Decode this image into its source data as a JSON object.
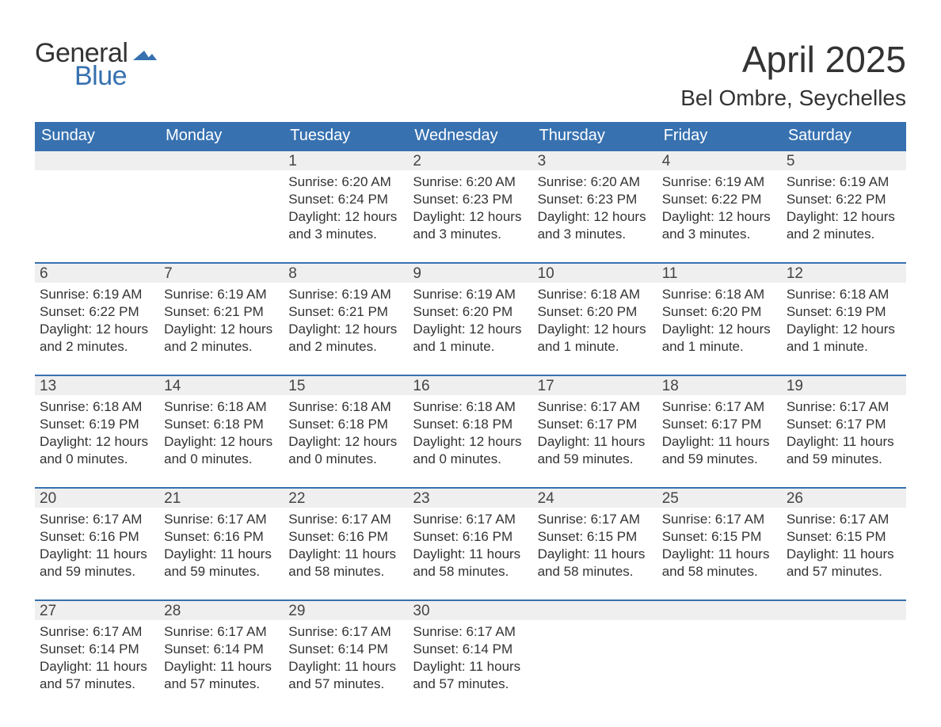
{
  "logo": {
    "text1": "General",
    "text2": "Blue",
    "accent_color": "#3771b0"
  },
  "title": "April 2025",
  "location": "Bel Ombre, Seychelles",
  "colors": {
    "header_bg": "#3771b0",
    "header_text": "#ffffff",
    "daynum_bg": "#efefef",
    "daynum_border": "#3771b0",
    "body_text": "#333333",
    "background": "#ffffff"
  },
  "typography": {
    "title_fontsize": 46,
    "location_fontsize": 28,
    "weekday_fontsize": 20,
    "daynum_fontsize": 19,
    "body_fontsize": 17,
    "font_family": "Arial"
  },
  "calendar": {
    "type": "table",
    "columns": [
      "Sunday",
      "Monday",
      "Tuesday",
      "Wednesday",
      "Thursday",
      "Friday",
      "Saturday"
    ],
    "weeks": [
      [
        null,
        null,
        {
          "day": "1",
          "sunrise": "Sunrise: 6:20 AM",
          "sunset": "Sunset: 6:24 PM",
          "daylight1": "Daylight: 12 hours",
          "daylight2": "and 3 minutes."
        },
        {
          "day": "2",
          "sunrise": "Sunrise: 6:20 AM",
          "sunset": "Sunset: 6:23 PM",
          "daylight1": "Daylight: 12 hours",
          "daylight2": "and 3 minutes."
        },
        {
          "day": "3",
          "sunrise": "Sunrise: 6:20 AM",
          "sunset": "Sunset: 6:23 PM",
          "daylight1": "Daylight: 12 hours",
          "daylight2": "and 3 minutes."
        },
        {
          "day": "4",
          "sunrise": "Sunrise: 6:19 AM",
          "sunset": "Sunset: 6:22 PM",
          "daylight1": "Daylight: 12 hours",
          "daylight2": "and 3 minutes."
        },
        {
          "day": "5",
          "sunrise": "Sunrise: 6:19 AM",
          "sunset": "Sunset: 6:22 PM",
          "daylight1": "Daylight: 12 hours",
          "daylight2": "and 2 minutes."
        }
      ],
      [
        {
          "day": "6",
          "sunrise": "Sunrise: 6:19 AM",
          "sunset": "Sunset: 6:22 PM",
          "daylight1": "Daylight: 12 hours",
          "daylight2": "and 2 minutes."
        },
        {
          "day": "7",
          "sunrise": "Sunrise: 6:19 AM",
          "sunset": "Sunset: 6:21 PM",
          "daylight1": "Daylight: 12 hours",
          "daylight2": "and 2 minutes."
        },
        {
          "day": "8",
          "sunrise": "Sunrise: 6:19 AM",
          "sunset": "Sunset: 6:21 PM",
          "daylight1": "Daylight: 12 hours",
          "daylight2": "and 2 minutes."
        },
        {
          "day": "9",
          "sunrise": "Sunrise: 6:19 AM",
          "sunset": "Sunset: 6:20 PM",
          "daylight1": "Daylight: 12 hours",
          "daylight2": "and 1 minute."
        },
        {
          "day": "10",
          "sunrise": "Sunrise: 6:18 AM",
          "sunset": "Sunset: 6:20 PM",
          "daylight1": "Daylight: 12 hours",
          "daylight2": "and 1 minute."
        },
        {
          "day": "11",
          "sunrise": "Sunrise: 6:18 AM",
          "sunset": "Sunset: 6:20 PM",
          "daylight1": "Daylight: 12 hours",
          "daylight2": "and 1 minute."
        },
        {
          "day": "12",
          "sunrise": "Sunrise: 6:18 AM",
          "sunset": "Sunset: 6:19 PM",
          "daylight1": "Daylight: 12 hours",
          "daylight2": "and 1 minute."
        }
      ],
      [
        {
          "day": "13",
          "sunrise": "Sunrise: 6:18 AM",
          "sunset": "Sunset: 6:19 PM",
          "daylight1": "Daylight: 12 hours",
          "daylight2": "and 0 minutes."
        },
        {
          "day": "14",
          "sunrise": "Sunrise: 6:18 AM",
          "sunset": "Sunset: 6:18 PM",
          "daylight1": "Daylight: 12 hours",
          "daylight2": "and 0 minutes."
        },
        {
          "day": "15",
          "sunrise": "Sunrise: 6:18 AM",
          "sunset": "Sunset: 6:18 PM",
          "daylight1": "Daylight: 12 hours",
          "daylight2": "and 0 minutes."
        },
        {
          "day": "16",
          "sunrise": "Sunrise: 6:18 AM",
          "sunset": "Sunset: 6:18 PM",
          "daylight1": "Daylight: 12 hours",
          "daylight2": "and 0 minutes."
        },
        {
          "day": "17",
          "sunrise": "Sunrise: 6:17 AM",
          "sunset": "Sunset: 6:17 PM",
          "daylight1": "Daylight: 11 hours",
          "daylight2": "and 59 minutes."
        },
        {
          "day": "18",
          "sunrise": "Sunrise: 6:17 AM",
          "sunset": "Sunset: 6:17 PM",
          "daylight1": "Daylight: 11 hours",
          "daylight2": "and 59 minutes."
        },
        {
          "day": "19",
          "sunrise": "Sunrise: 6:17 AM",
          "sunset": "Sunset: 6:17 PM",
          "daylight1": "Daylight: 11 hours",
          "daylight2": "and 59 minutes."
        }
      ],
      [
        {
          "day": "20",
          "sunrise": "Sunrise: 6:17 AM",
          "sunset": "Sunset: 6:16 PM",
          "daylight1": "Daylight: 11 hours",
          "daylight2": "and 59 minutes."
        },
        {
          "day": "21",
          "sunrise": "Sunrise: 6:17 AM",
          "sunset": "Sunset: 6:16 PM",
          "daylight1": "Daylight: 11 hours",
          "daylight2": "and 59 minutes."
        },
        {
          "day": "22",
          "sunrise": "Sunrise: 6:17 AM",
          "sunset": "Sunset: 6:16 PM",
          "daylight1": "Daylight: 11 hours",
          "daylight2": "and 58 minutes."
        },
        {
          "day": "23",
          "sunrise": "Sunrise: 6:17 AM",
          "sunset": "Sunset: 6:16 PM",
          "daylight1": "Daylight: 11 hours",
          "daylight2": "and 58 minutes."
        },
        {
          "day": "24",
          "sunrise": "Sunrise: 6:17 AM",
          "sunset": "Sunset: 6:15 PM",
          "daylight1": "Daylight: 11 hours",
          "daylight2": "and 58 minutes."
        },
        {
          "day": "25",
          "sunrise": "Sunrise: 6:17 AM",
          "sunset": "Sunset: 6:15 PM",
          "daylight1": "Daylight: 11 hours",
          "daylight2": "and 58 minutes."
        },
        {
          "day": "26",
          "sunrise": "Sunrise: 6:17 AM",
          "sunset": "Sunset: 6:15 PM",
          "daylight1": "Daylight: 11 hours",
          "daylight2": "and 57 minutes."
        }
      ],
      [
        {
          "day": "27",
          "sunrise": "Sunrise: 6:17 AM",
          "sunset": "Sunset: 6:14 PM",
          "daylight1": "Daylight: 11 hours",
          "daylight2": "and 57 minutes."
        },
        {
          "day": "28",
          "sunrise": "Sunrise: 6:17 AM",
          "sunset": "Sunset: 6:14 PM",
          "daylight1": "Daylight: 11 hours",
          "daylight2": "and 57 minutes."
        },
        {
          "day": "29",
          "sunrise": "Sunrise: 6:17 AM",
          "sunset": "Sunset: 6:14 PM",
          "daylight1": "Daylight: 11 hours",
          "daylight2": "and 57 minutes."
        },
        {
          "day": "30",
          "sunrise": "Sunrise: 6:17 AM",
          "sunset": "Sunset: 6:14 PM",
          "daylight1": "Daylight: 11 hours",
          "daylight2": "and 57 minutes."
        },
        null,
        null,
        null
      ]
    ]
  }
}
